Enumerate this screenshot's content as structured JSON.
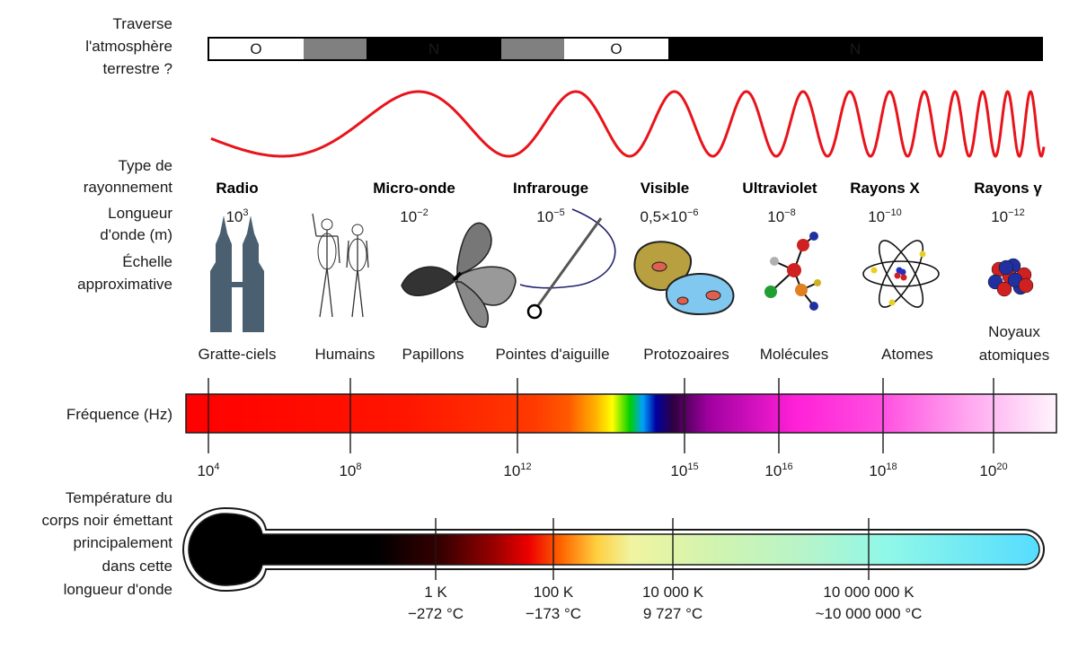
{
  "row_labels": {
    "atmosphere": [
      "Traverse",
      "l'atmosphère",
      "terrestre ?"
    ],
    "radiation_type": [
      "Type de",
      "rayonnement"
    ],
    "wavelength": [
      "Longueur",
      "d'onde (m)"
    ],
    "scale": [
      "Échelle",
      "approximative"
    ],
    "frequency": [
      "Fréquence (Hz)"
    ],
    "temperature": [
      "Température du",
      "corps noir émettant",
      "principalement",
      "dans cette",
      "longueur d'onde"
    ]
  },
  "atmosphere_bar": [
    {
      "label": "O",
      "state": "opaque-white"
    },
    {
      "label": "",
      "state": "partial-gray"
    },
    {
      "label": "N",
      "state": "black"
    },
    {
      "label": "",
      "state": "partial-gray"
    },
    {
      "label": "O",
      "state": "opaque-white"
    },
    {
      "label": "N",
      "state": "black"
    }
  ],
  "radiation_types": [
    {
      "name": "Radio",
      "wavelength_base": "10",
      "wavelength_exp": "3",
      "scale_object": "Gratte-ciels",
      "icon": "skyscraper-icon"
    },
    {
      "name": "",
      "wavelength_base": "",
      "wavelength_exp": "",
      "scale_object": "Humains",
      "icon": "humans-icon"
    },
    {
      "name": "Micro-onde",
      "wavelength_base": "10",
      "wavelength_exp": "−2",
      "scale_object": "Papillons",
      "icon": "butterfly-icon"
    },
    {
      "name": "Infrarouge",
      "wavelength_base": "10",
      "wavelength_exp": "−5",
      "scale_object": "Pointes d'aiguille",
      "icon": "needle-icon"
    },
    {
      "name": "Visible",
      "wavelength_base": "0,5×10",
      "wavelength_exp": "−6",
      "scale_object": "Protozoaires",
      "icon": "protozoa-icon"
    },
    {
      "name": "Ultraviolet",
      "wavelength_base": "10",
      "wavelength_exp": "−8",
      "scale_object": "Molécules",
      "icon": "molecule-icon"
    },
    {
      "name": "Rayons X",
      "wavelength_base": "10",
      "wavelength_exp": "−10",
      "scale_object": "Atomes",
      "icon": "atom-icon"
    },
    {
      "name": "Rayons γ",
      "wavelength_base": "10",
      "wavelength_exp": "−12",
      "scale_object": "Noyaux atomiques",
      "icon": "nucleus-icon"
    }
  ],
  "frequency_ticks": [
    {
      "base": "10",
      "exp": "4"
    },
    {
      "base": "10",
      "exp": "8"
    },
    {
      "base": "10",
      "exp": "12"
    },
    {
      "base": "10",
      "exp": "15"
    },
    {
      "base": "10",
      "exp": "16"
    },
    {
      "base": "10",
      "exp": "18"
    },
    {
      "base": "10",
      "exp": "20"
    }
  ],
  "temperature_ticks": [
    {
      "kelvin": "1 K",
      "celsius": "−272 °C"
    },
    {
      "kelvin": "100 K",
      "celsius": "−173 °C"
    },
    {
      "kelvin": "10 000 K",
      "celsius": "9 727 °C"
    },
    {
      "kelvin": "10 000 000 K",
      "celsius": "~10 000 000 °C"
    }
  ],
  "colors": {
    "wave": "#e8141b",
    "atmosphere_black": "#000000",
    "atmosphere_gray": "#808080",
    "outline": "#1a1a1a"
  }
}
